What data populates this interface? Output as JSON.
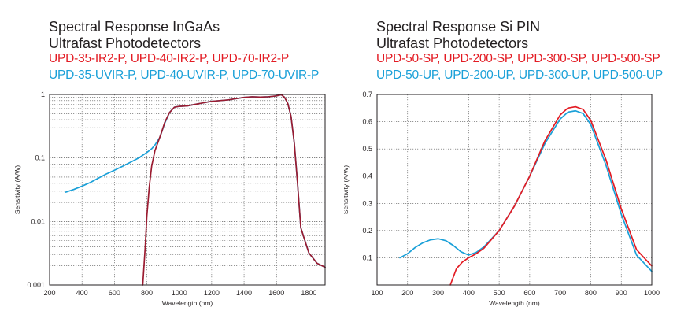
{
  "charts": [
    {
      "title_line1": "Spectral Response InGaAs",
      "title_line2": "Ultrafast Photodetectors",
      "series_line_red": "UPD-35-IR2-P, UPD-40-IR2-P, UPD-70-IR2-P",
      "series_line_blue": "UPD-35-UVIR-P, UPD-40-UVIR-P, UPD-70-UVIR-P",
      "colors": {
        "red": "#e31b23",
        "blue": "#1aa0d8"
      }
    },
    {
      "title_line1": "Spectral Response Si PIN",
      "title_line2": "Ultrafast Photodetectors",
      "series_line_red": "UPD-50-SP, UPD-200-SP, UPD-300-SP, UPD-500-SP",
      "series_line_blue": "UPD-50-UP, UPD-200-UP, UPD-300-UP, UPD-500-UP",
      "colors": {
        "red": "#e31b23",
        "blue": "#1aa0d8"
      }
    }
  ],
  "chart_data": [
    {
      "type": "line",
      "title": "Spectral Response InGaAs",
      "xlabel": "Wavelength (nm)",
      "ylabel": "Sensitivity (A/W)",
      "yscale": "log",
      "xlim": [
        200,
        1900
      ],
      "ylim": [
        0.001,
        1
      ],
      "x_ticks": [
        200,
        400,
        600,
        800,
        1000,
        1200,
        1400,
        1600,
        1800
      ],
      "x_tick_labels": [
        "200",
        "400",
        "600",
        "800",
        "1000",
        "1200",
        "1400",
        "1600",
        "1800"
      ],
      "y_ticks": [
        0.001,
        0.01,
        0.1,
        1
      ],
      "y_tick_labels": [
        "0.001",
        "0.01",
        "0.1",
        "1"
      ],
      "grid": true,
      "series": [
        {
          "color": "#1aa0d8",
          "x": [
            300,
            350,
            400,
            450,
            500,
            550,
            600,
            650,
            700,
            750,
            800,
            830,
            850,
            880,
            910,
            940,
            970,
            1000,
            1050,
            1100,
            1200,
            1300,
            1400,
            1450,
            1500,
            1550,
            1600,
            1630,
            1650,
            1670,
            1690,
            1710,
            1730,
            1750,
            1770,
            1800,
            1850,
            1900
          ],
          "y": [
            0.029,
            0.032,
            0.036,
            0.041,
            0.048,
            0.056,
            0.064,
            0.074,
            0.086,
            0.1,
            0.122,
            0.14,
            0.16,
            0.21,
            0.35,
            0.52,
            0.63,
            0.65,
            0.66,
            0.7,
            0.78,
            0.82,
            0.9,
            0.92,
            0.91,
            0.92,
            0.95,
            0.99,
            0.9,
            0.72,
            0.45,
            0.17,
            0.04,
            0.008,
            0.0055,
            0.0032,
            0.0022,
            0.0019
          ]
        },
        {
          "color": "#9b1b30",
          "x": [
            775,
            780,
            790,
            800,
            815,
            830,
            850,
            870,
            890,
            910,
            940,
            970,
            1000,
            1050,
            1100,
            1200,
            1300,
            1400,
            1450,
            1500,
            1550,
            1600,
            1630,
            1650,
            1670,
            1690,
            1710,
            1730,
            1750,
            1770,
            1800,
            1850,
            1900
          ],
          "y": [
            0.001,
            0.0016,
            0.004,
            0.012,
            0.035,
            0.075,
            0.13,
            0.18,
            0.25,
            0.36,
            0.52,
            0.63,
            0.65,
            0.66,
            0.7,
            0.78,
            0.82,
            0.9,
            0.92,
            0.91,
            0.92,
            0.95,
            0.99,
            0.9,
            0.72,
            0.45,
            0.17,
            0.04,
            0.008,
            0.0055,
            0.0032,
            0.0022,
            0.0019
          ]
        }
      ]
    },
    {
      "type": "line",
      "title": "Spectral Response Si PIN",
      "xlabel": "Wavelength (nm)",
      "ylabel": "Sensitivity (A/W)",
      "xlim": [
        100,
        1000
      ],
      "ylim": [
        0,
        0.7
      ],
      "x_ticks": [
        100,
        200,
        300,
        400,
        500,
        600,
        700,
        800,
        900,
        1000
      ],
      "x_tick_labels": [
        "100",
        "200",
        "300",
        "400",
        "500",
        "600",
        "700",
        "800",
        "900",
        "1000"
      ],
      "y_ticks": [
        0.1,
        0.2,
        0.3,
        0.4,
        0.5,
        0.6,
        0.7
      ],
      "y_tick_labels": [
        "0.1",
        "0.2",
        "0.3",
        "0.4",
        "0.5",
        "0.6",
        "0.7"
      ],
      "grid": true,
      "series": [
        {
          "color": "#1aa0d8",
          "x": [
            175,
            200,
            225,
            250,
            275,
            300,
            325,
            350,
            375,
            400,
            425,
            450,
            500,
            550,
            600,
            650,
            700,
            725,
            750,
            775,
            800,
            850,
            900,
            950,
            1000
          ],
          "y": [
            0.1,
            0.115,
            0.138,
            0.155,
            0.166,
            0.17,
            0.163,
            0.145,
            0.122,
            0.11,
            0.12,
            0.14,
            0.2,
            0.29,
            0.4,
            0.52,
            0.61,
            0.635,
            0.64,
            0.63,
            0.59,
            0.44,
            0.26,
            0.11,
            0.05
          ]
        },
        {
          "color": "#e31b23",
          "x": [
            340,
            360,
            380,
            400,
            425,
            450,
            500,
            550,
            600,
            650,
            700,
            725,
            750,
            775,
            800,
            850,
            900,
            950,
            1000
          ],
          "y": [
            0.0,
            0.06,
            0.085,
            0.1,
            0.115,
            0.135,
            0.2,
            0.29,
            0.4,
            0.53,
            0.625,
            0.65,
            0.655,
            0.645,
            0.605,
            0.46,
            0.28,
            0.13,
            0.07
          ]
        }
      ]
    }
  ]
}
